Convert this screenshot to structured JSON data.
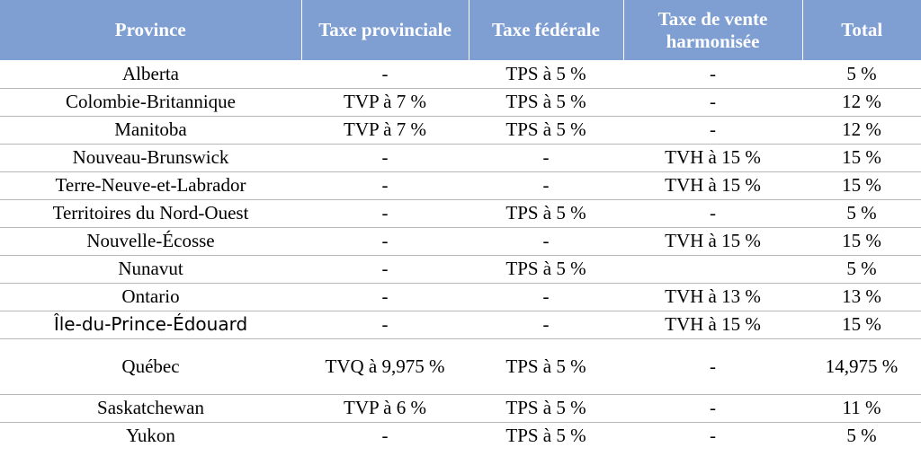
{
  "table": {
    "headers": [
      "Province",
      "Taxe provinciale",
      "Taxe fédérale",
      "Taxe de vente harmonisée",
      "Total"
    ],
    "rows": [
      [
        "Alberta",
        "-",
        "TPS à 5 %",
        "-",
        "5 %"
      ],
      [
        "Colombie-Britannique",
        "TVP à 7 %",
        "TPS à 5 %",
        "-",
        "12 %"
      ],
      [
        "Manitoba",
        "TVP à 7 %",
        "TPS à 5 %",
        "-",
        "12 %"
      ],
      [
        "Nouveau-Brunswick",
        "-",
        "-",
        "TVH à 15 %",
        "15 %"
      ],
      [
        "Terre-Neuve-et-Labrador",
        "-",
        "-",
        "TVH à 15 %",
        "15 %"
      ],
      [
        "Territoires du Nord-Ouest",
        "-",
        "TPS à 5 %",
        "-",
        "5 %"
      ],
      [
        "Nouvelle-Écosse",
        "-",
        "-",
        "TVH à 15 %",
        "15 %"
      ],
      [
        "Nunavut",
        "-",
        "TPS à 5 %",
        "",
        "5 %"
      ],
      [
        "Ontario",
        "-",
        "-",
        "TVH à 13 %",
        "13 %"
      ],
      [
        "Île-du-Prince-Édouard",
        "-",
        "-",
        "TVH à 15 %",
        "15 %"
      ],
      [
        "Québec",
        "TVQ à 9,975 %",
        "TPS à 5 %",
        "-",
        "14,975 %"
      ],
      [
        "Saskatchewan",
        "TVP à 6 %",
        "TPS à 5 %",
        "-",
        "11 %"
      ],
      [
        "Yukon",
        "-",
        "TPS à 5 %",
        "-",
        "5 %"
      ]
    ]
  }
}
